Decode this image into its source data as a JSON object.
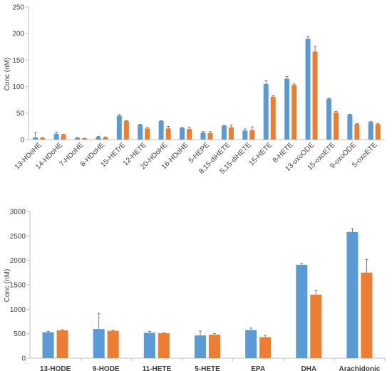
{
  "chart_data": [
    {
      "type": "bar",
      "ylabel": "Conc (nM)",
      "ylim": [
        0,
        250
      ],
      "yticks": [
        0,
        50,
        100,
        150,
        200,
        250
      ],
      "grid": false,
      "categories": [
        "13-HDoHE",
        "14-HDoHE",
        "7-HDoHE",
        "8-HDoHE",
        "15-HETrE",
        "12-HETE",
        "20-HDoHE",
        "16-HDoHE",
        "5-HEPE",
        "8,15-diHETE",
        "5,15-diHETE",
        "15-HETE",
        "8-HETE",
        "13-oxoODE",
        "15-oxoETE",
        "9-oxoODE",
        "5-oxoETE"
      ],
      "series": [
        {
          "color": "#5b9bd5",
          "values": [
            4,
            11,
            3,
            5,
            45,
            28,
            35,
            22,
            13,
            26,
            17,
            105,
            115,
            190,
            77,
            47,
            33
          ],
          "errors": [
            9,
            3,
            1,
            1,
            2,
            1,
            1,
            1,
            2,
            1,
            3,
            6,
            4,
            4,
            1,
            1,
            1
          ]
        },
        {
          "color": "#ed7d31",
          "values": [
            3,
            9,
            2,
            4,
            35,
            21,
            21,
            20,
            12,
            23,
            18,
            81,
            103,
            166,
            51,
            29,
            29
          ],
          "errors": [
            1,
            1,
            0.5,
            1,
            1,
            2,
            4,
            3,
            3,
            4,
            6,
            2,
            2,
            10,
            2,
            1,
            1
          ]
        }
      ]
    },
    {
      "type": "bar",
      "ylabel": "Conc (nM)",
      "ylim": [
        0,
        3000
      ],
      "yticks": [
        0,
        500,
        1000,
        1500,
        2000,
        2500,
        3000
      ],
      "grid": false,
      "categories": [
        "13-HODE",
        "9-HODE",
        "11-HETE",
        "5-HETE",
        "EPA",
        "DHA",
        "Arachidonic"
      ],
      "series": [
        {
          "color": "#5b9bd5",
          "values": [
            530,
            595,
            520,
            465,
            575,
            1910,
            2580
          ],
          "errors": [
            15,
            320,
            30,
            90,
            40,
            30,
            70
          ]
        },
        {
          "color": "#ed7d31",
          "values": [
            570,
            560,
            510,
            480,
            430,
            1300,
            1750
          ],
          "errors": [
            10,
            10,
            10,
            20,
            40,
            90,
            270
          ]
        }
      ]
    }
  ]
}
